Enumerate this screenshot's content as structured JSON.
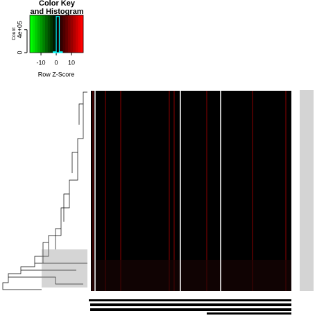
{
  "chart_data": {
    "type": "histogram",
    "title": [
      "Color Key",
      "and Histogram"
    ],
    "xlabel": "Row Z-Score",
    "ylabel": "Count",
    "xlim": [
      -17.3,
      17.7
    ],
    "ylim": [
      0,
      650000
    ],
    "xticks": [
      -10,
      0,
      10
    ],
    "yticks": [
      0,
      {
        "value": 400000,
        "label": "4e+05"
      }
    ],
    "bins": [
      -2,
      0,
      2,
      4
    ],
    "counts": [
      15000,
      630000,
      15000
    ],
    "color": "#00ffff",
    "key_colors": [
      "#00ff00",
      "#00e600",
      "#00cc00",
      "#00b300",
      "#009900",
      "#008000",
      "#006600",
      "#004d00",
      "#003300",
      "#001a00",
      "#000000",
      "#1a0000",
      "#330000",
      "#4d0000",
      "#660000",
      "#800000",
      "#990000",
      "#b30000",
      "#cc0000",
      "#e60000",
      "#ff0000"
    ]
  }
}
